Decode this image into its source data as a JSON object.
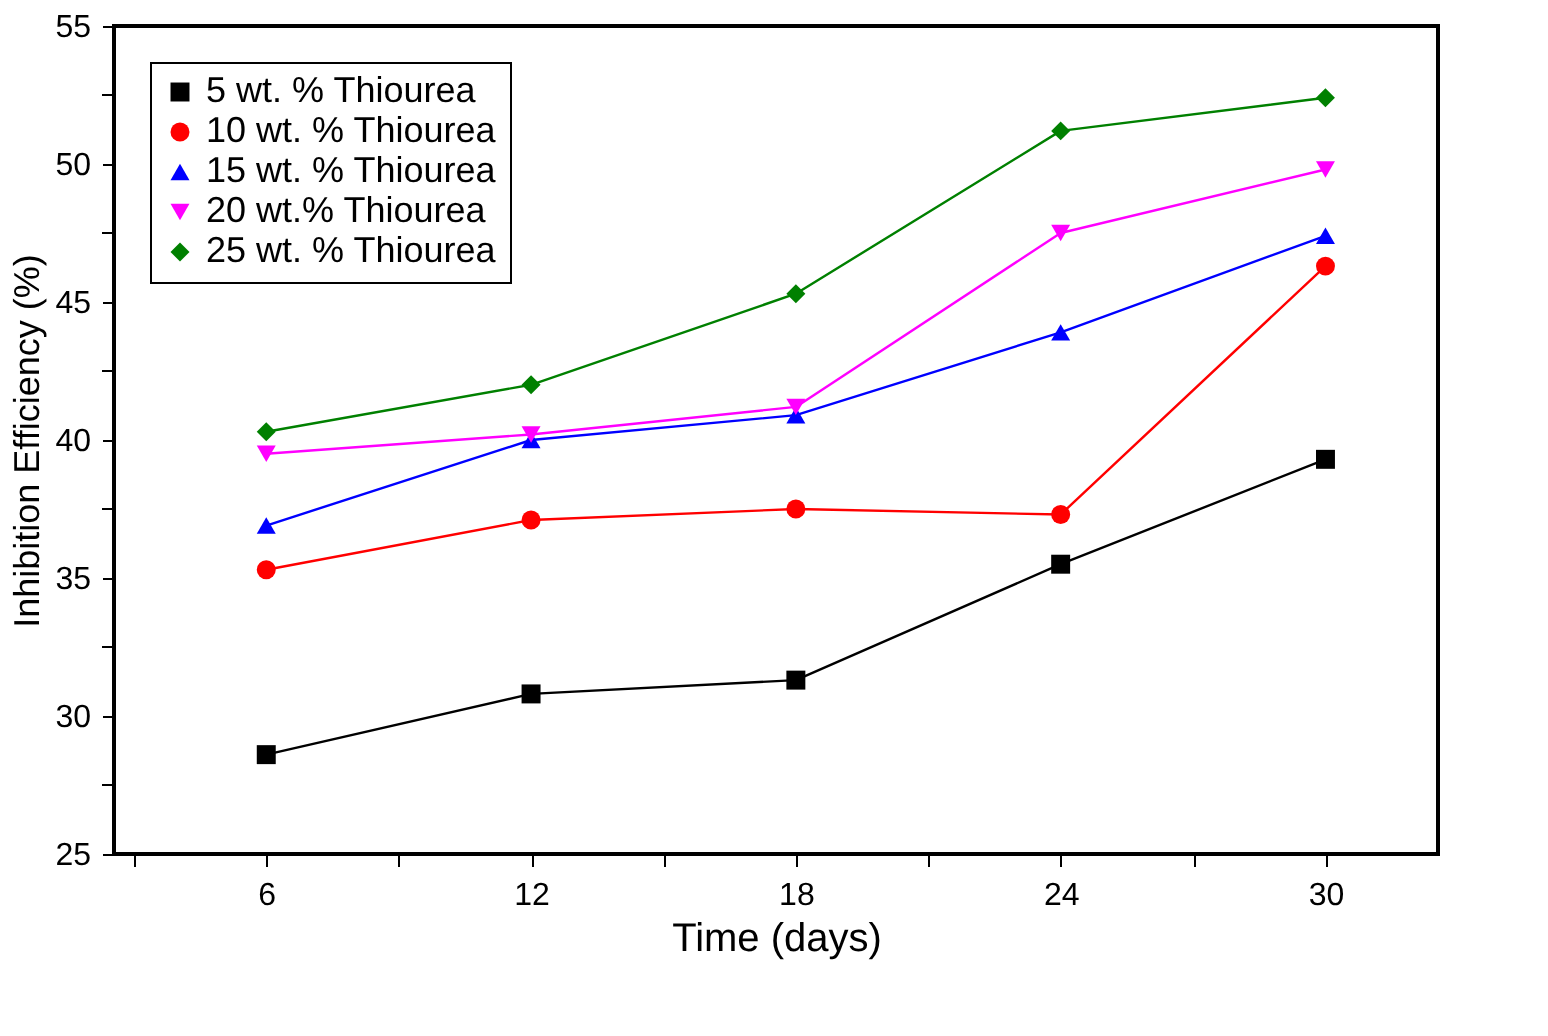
{
  "chart_data": {
    "type": "line",
    "xlabel": "Time (days)",
    "ylabel": "Inhibition Efficiency (%)",
    "x": [
      6,
      12,
      18,
      24,
      30
    ],
    "xlim": [
      2.55,
      32.55
    ],
    "xticks": [
      {
        "value": 3,
        "label": null
      },
      6,
      {
        "value": 9,
        "label": null
      },
      12,
      {
        "value": 15,
        "label": null
      },
      18,
      {
        "value": 21,
        "label": null
      },
      24,
      {
        "value": 27,
        "label": null
      },
      30
    ],
    "ylim": [
      25,
      55
    ],
    "yticks": [
      25,
      {
        "value": 27.5,
        "label": null
      },
      30,
      {
        "value": 32.5,
        "label": null
      },
      35,
      {
        "value": 37.5,
        "label": null
      },
      40,
      {
        "value": 42.5,
        "label": null
      },
      45,
      {
        "value": 47.5,
        "label": null
      },
      50,
      {
        "value": 52.5,
        "label": null
      },
      55
    ],
    "grid": false,
    "legend": "top left",
    "line_style": "solid",
    "series": [
      {
        "name": "5 wt. % Thiourea",
        "color": "#000000",
        "marker": "square",
        "values": [
          28.6,
          30.8,
          31.3,
          35.5,
          39.3
        ]
      },
      {
        "name": "10 wt. % Thiourea",
        "color": "#ff0000",
        "marker": "circle",
        "values": [
          35.3,
          37.1,
          37.5,
          37.3,
          46.3
        ]
      },
      {
        "name": "15 wt. % Thiourea",
        "color": "#0000ff",
        "marker": "triangle",
        "values": [
          36.9,
          40.0,
          40.9,
          43.9,
          47.4
        ]
      },
      {
        "name": "20 wt.% Thiourea",
        "color": "#ff00ff",
        "marker": "triangle-down",
        "values": [
          39.5,
          40.2,
          41.2,
          47.5,
          49.8
        ]
      },
      {
        "name": "25 wt. % Thiourea",
        "color": "#008000",
        "marker": "diamond",
        "values": [
          40.3,
          42.0,
          45.3,
          51.2,
          52.4
        ]
      }
    ]
  }
}
